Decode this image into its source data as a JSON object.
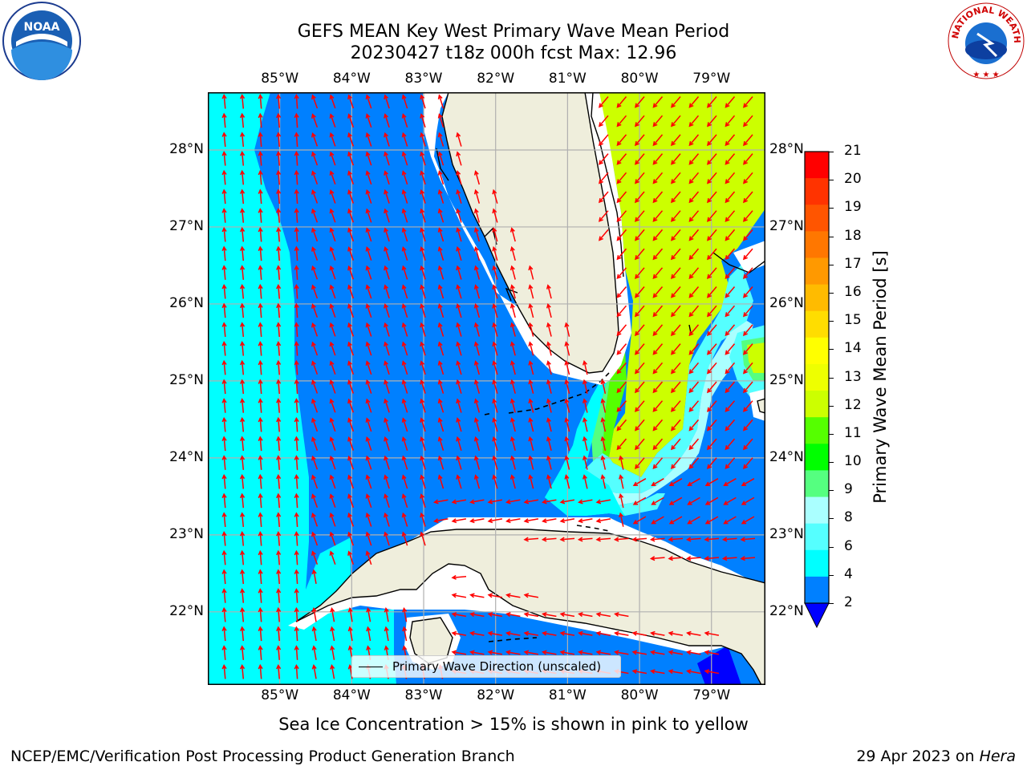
{
  "header": {
    "title_line1": "GEFS MEAN Key West Primary Wave Mean Period",
    "title_line2": "20230427 t18z 000h fcst   Max: 12.96"
  },
  "logos": {
    "noaa_text": "NOAA",
    "nws_text": "NATIONAL WEATHER SERVICE"
  },
  "map": {
    "lon_ticks": [
      "85°W",
      "84°W",
      "83°W",
      "82°W",
      "81°W",
      "80°W",
      "79°W"
    ],
    "lat_ticks": [
      "28°N",
      "27°N",
      "26°N",
      "25°N",
      "24°N",
      "23°N",
      "22°N"
    ],
    "lon_range": [
      -86.0,
      -78.25
    ],
    "lat_range": [
      21.05,
      28.75
    ],
    "legend_label": "Primary Wave Direction (unscaled)",
    "colors": {
      "land": "#efeedc",
      "lev_2_4": "#0080ff",
      "lev_4_6": "#00ffff",
      "lev_6_8": "#55ffff",
      "lev_8_9": "#aaffff",
      "lev_9_10": "#55ff80",
      "lev_11_12": "#55ff00",
      "lev_12_13": "#ccff00",
      "below_2": "#0000ff",
      "arrow": "#ff0000",
      "grid": "#b0b0b0"
    }
  },
  "colorbar": {
    "label": "Primary Wave Mean Period [s]",
    "ticks": [
      "21",
      "20",
      "19",
      "18",
      "17",
      "16",
      "15",
      "14",
      "13",
      "12",
      "11",
      "10",
      "9",
      "8",
      "6",
      "4",
      "2"
    ],
    "bands": [
      "#ff0000",
      "#ff3300",
      "#ff5500",
      "#ff7700",
      "#ff9900",
      "#ffbb00",
      "#ffdd00",
      "#ffff00",
      "#eeff00",
      "#ccff00",
      "#55ff00",
      "#00ff00",
      "#55ff80",
      "#aaffff",
      "#55ffff",
      "#00ffff",
      "#0080ff"
    ],
    "extend_color": "#0000ff"
  },
  "footer": {
    "note": "Sea Ice Concentration > 15% is shown in pink to yellow",
    "org": "NCEP/EMC/Verification Post Processing Product Generation Branch",
    "date": "29 Apr 2023 on ",
    "machine": "Hera"
  }
}
